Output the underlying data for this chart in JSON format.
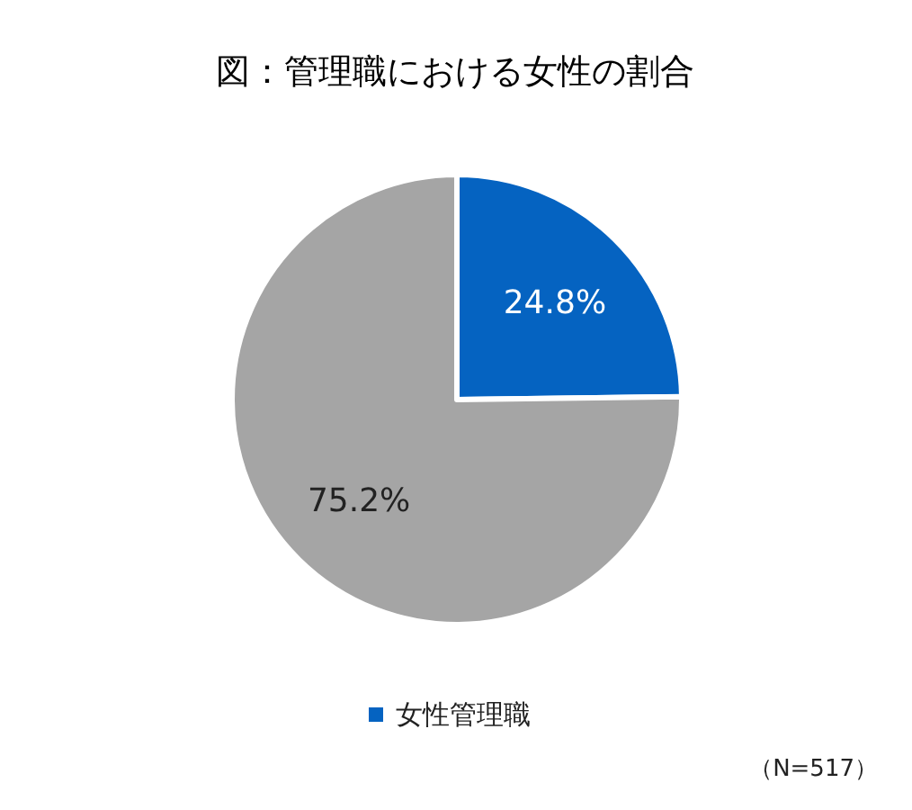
{
  "chart_data": {
    "type": "pie",
    "title": "図：管理職における女性の割合",
    "categories": [
      "女性管理職",
      null
    ],
    "values": [
      24.8,
      75.2
    ],
    "colors": [
      "#0563c1",
      "#a5a5a5"
    ],
    "value_labels": [
      "24.8%",
      "75.2%"
    ],
    "legend": "bottom",
    "annotations": [
      "（N=517）"
    ]
  }
}
